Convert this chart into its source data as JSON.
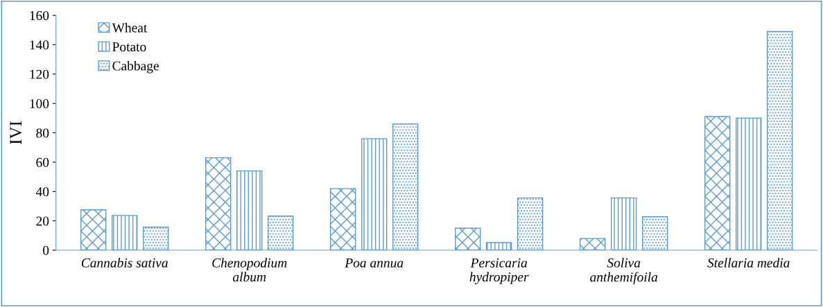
{
  "chart_data": {
    "type": "bar",
    "ylabel": "IVI",
    "categories": [
      "Cannabis sativa",
      "Chenopodium\nalbum",
      "Poa annua",
      "Persicaria\nhydropiper",
      "Soliva\nanthemifoila",
      "Stellaria media"
    ],
    "series": [
      {
        "name": "Wheat",
        "color": "#5b9bd5",
        "values": [
          27.5,
          63,
          42,
          15,
          8,
          91
        ]
      },
      {
        "name": "Potato",
        "color": "#5b9bd5",
        "values": [
          23.7,
          54,
          76,
          5.2,
          35.6,
          90
        ]
      },
      {
        "name": "Cabbage",
        "color": "#5b9bd5",
        "values": [
          15.7,
          23.3,
          86,
          35.6,
          22.8,
          149
        ]
      }
    ],
    "ylim": [
      0,
      160
    ],
    "yticks": [
      0,
      20,
      40,
      60,
      80,
      100,
      120,
      140,
      160
    ],
    "grid": false,
    "legend": "top left"
  }
}
